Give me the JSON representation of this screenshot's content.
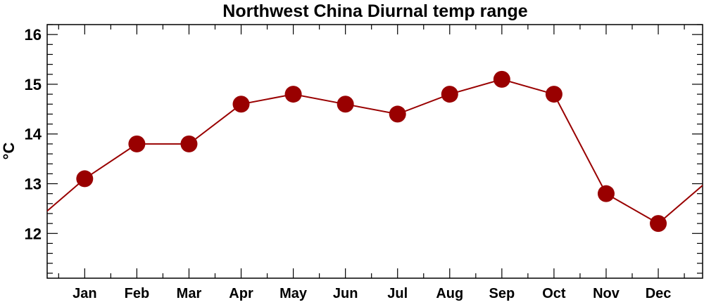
{
  "chart_data": {
    "type": "line",
    "title": "Northwest China Diurnal temp range",
    "xlabel": "",
    "ylabel": "°C",
    "categories": [
      "Jan",
      "Feb",
      "Mar",
      "Apr",
      "May",
      "Jun",
      "Jul",
      "Aug",
      "Sep",
      "Oct",
      "Nov",
      "Dec"
    ],
    "series": [
      {
        "values": [
          13.1,
          13.8,
          13.8,
          14.6,
          14.8,
          14.6,
          14.4,
          14.8,
          15.1,
          14.8,
          12.8,
          12.2
        ],
        "color": "#990000"
      }
    ],
    "ylim": [
      11.1,
      16.2
    ],
    "yticks": [
      12,
      13,
      14,
      15,
      16
    ],
    "ytick_labels": [
      "12",
      "13",
      "14",
      "15",
      "16"
    ],
    "grid": false,
    "legend": "none"
  }
}
